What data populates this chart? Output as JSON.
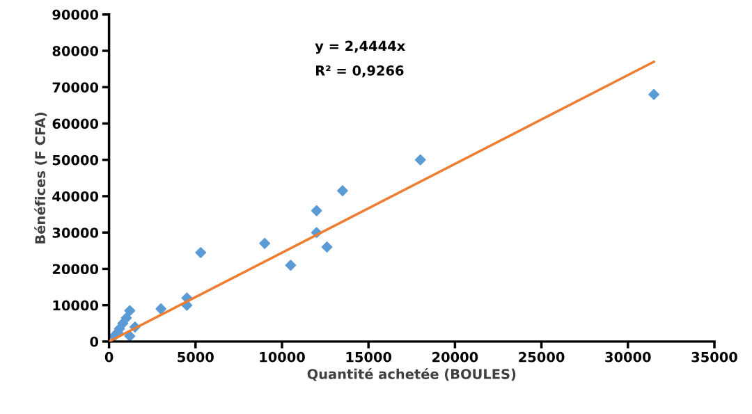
{
  "chart_data": {
    "type": "scatter",
    "xlabel": "Quantité achetée (BOULES)",
    "ylabel": "Bénéfices (F CFA)",
    "annotations": [
      "y = 2,4444x",
      "R² = 0,9266"
    ],
    "xlim": [
      0,
      35000
    ],
    "xticks": [
      0,
      5000,
      10000,
      15000,
      20000,
      25000,
      30000,
      35000
    ],
    "ylim": [
      0,
      90000
    ],
    "yticks": [
      0,
      10000,
      20000,
      30000,
      40000,
      50000,
      60000,
      70000,
      80000,
      90000
    ],
    "grid": false,
    "marker": "diamond",
    "series": [
      {
        "color": "#5b9bd5",
        "x": [
          31500,
          18000,
          13500,
          12000,
          12000,
          12600,
          9000,
          10500,
          5300,
          4500,
          4500,
          3000,
          1200,
          1000,
          800,
          600,
          500,
          300,
          1500,
          1200
        ],
        "values": [
          68000,
          50000,
          41500,
          36000,
          30000,
          26000,
          27000,
          21000,
          24500,
          12000,
          10000,
          9000,
          8500,
          6500,
          5000,
          3500,
          2500,
          1500,
          4000,
          1500
        ]
      },
      {
        "type": "line",
        "color": "#ed7d31",
        "x": [
          0,
          31500
        ],
        "values": [
          0,
          77000
        ],
        "marker": "none"
      }
    ]
  }
}
